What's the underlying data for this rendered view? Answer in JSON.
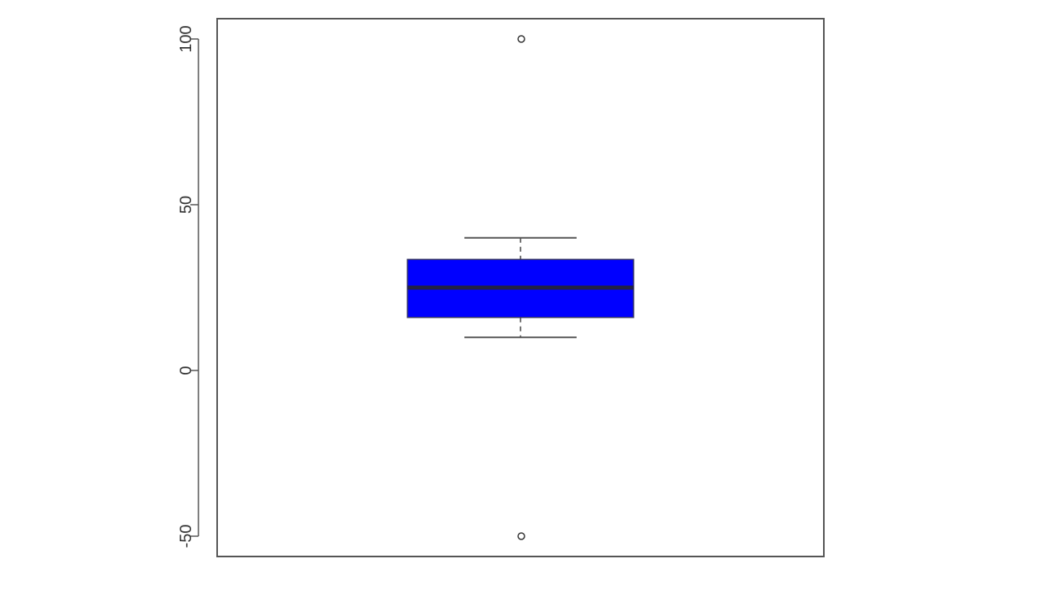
{
  "chart_data": {
    "type": "box",
    "title": "",
    "xlabel": "",
    "ylabel": "",
    "ylim": [
      -56,
      106
    ],
    "yticks": [
      -50,
      0,
      50,
      100
    ],
    "grid": false,
    "legend": "none",
    "box": {
      "fill_color": "#0000ff",
      "whisker_low": 10,
      "q1": 16,
      "median": 25,
      "q3": 33.5,
      "whisker_high": 40,
      "outliers": [
        100,
        -50
      ]
    }
  }
}
